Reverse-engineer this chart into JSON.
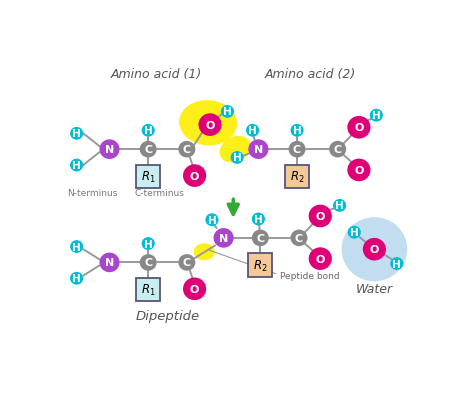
{
  "bg_color": "#ffffff",
  "atom_colors": {
    "H": "#00bcd4",
    "C": "#888888",
    "N": "#aa44cc",
    "O": "#dd0077",
    "bond": "#999999"
  },
  "top_label1": "Amino acid (1)",
  "top_label2": "Amino acid (2)",
  "bottom_label1": "Dipeptide",
  "bottom_label2": "Water",
  "n_terminus": "N-terminus",
  "c_terminus": "C-terminus",
  "peptide_bond_label": "Peptide bond",
  "highlight_yellow": "#ffee00",
  "highlight_blue": "#b8d8ee",
  "R1_color": "#c8eef0",
  "R2_color": "#f5c898",
  "arrow_color": "#33aa33",
  "fig_width": 4.74,
  "fig_height": 4.02,
  "dpi": 100
}
